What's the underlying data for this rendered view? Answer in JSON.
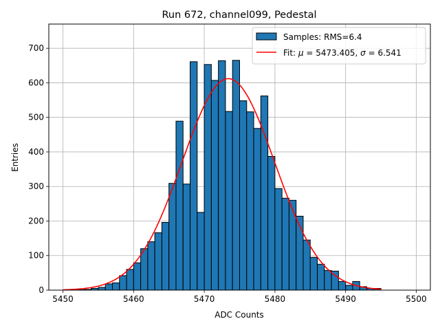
{
  "chart_data": {
    "type": "bar",
    "title": "Run 672, channel099, Pedestal",
    "xlabel": "ADC Counts",
    "ylabel": "Entries",
    "xlim": [
      5448,
      5502
    ],
    "ylim": [
      0,
      770
    ],
    "xticks": [
      5450,
      5460,
      5470,
      5480,
      5490,
      5500
    ],
    "yticks": [
      0,
      100,
      200,
      300,
      400,
      500,
      600,
      700
    ],
    "grid": true,
    "legend_position": "top-right",
    "bin_width": 1,
    "histogram": {
      "name": "Samples: RMS=6.4",
      "color": "#1f77b4",
      "edgecolor": "#000000",
      "bin_starts": [
        5450,
        5451,
        5452,
        5453,
        5454,
        5455,
        5456,
        5457,
        5458,
        5459,
        5460,
        5461,
        5462,
        5463,
        5464,
        5465,
        5466,
        5467,
        5468,
        5469,
        5470,
        5471,
        5472,
        5473,
        5474,
        5475,
        5476,
        5477,
        5478,
        5479,
        5480,
        5481,
        5482,
        5483,
        5484,
        5485,
        5486,
        5487,
        5488,
        5489,
        5490,
        5491,
        5492,
        5493,
        5494
      ],
      "values": [
        0,
        0,
        1,
        2,
        5,
        8,
        18,
        21,
        42,
        60,
        79,
        120,
        140,
        166,
        196,
        309,
        489,
        307,
        661,
        225,
        653,
        607,
        664,
        517,
        665,
        548,
        516,
        468,
        562,
        387,
        294,
        266,
        260,
        214,
        145,
        95,
        75,
        57,
        55,
        25,
        14,
        25,
        10,
        5,
        5
      ]
    },
    "fit": {
      "name": "Fit: μ = 5473.405, σ = 6.541",
      "color": "#ff0000",
      "mu": 5473.405,
      "sigma": 6.541,
      "amplitude": 612,
      "x_range": [
        5450,
        5495
      ]
    }
  },
  "legend": {
    "hist_label_prefix": "Samples: RMS=6.4",
    "fit_label_prefix": "Fit: ",
    "fit_mu_symbol": "μ",
    "fit_mu_text": " = 5473.405, ",
    "fit_sigma_symbol": "σ",
    "fit_sigma_text": " = 6.541"
  }
}
